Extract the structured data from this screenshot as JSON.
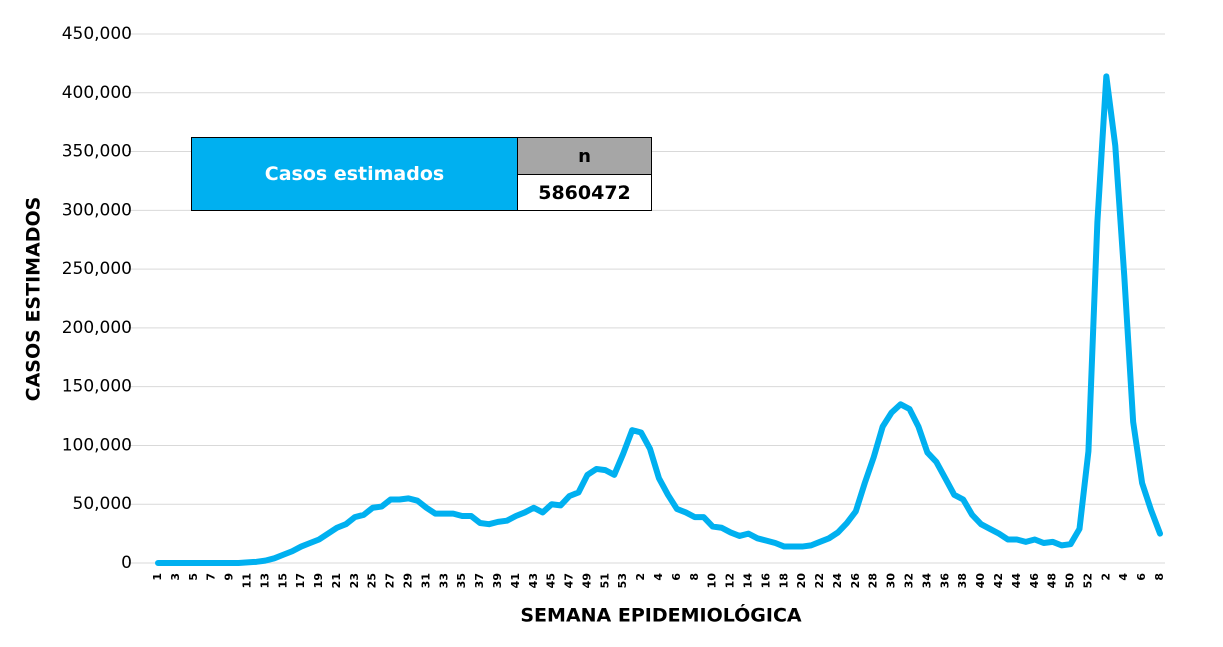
{
  "chart_data": {
    "type": "line",
    "x_label": "SEMANA EPIDEMIOLÓGICA",
    "y_label": "CASOS ESTIMADOS",
    "color": "#00b0f0",
    "grid": true,
    "categories": [
      "1",
      null,
      "3",
      null,
      "5",
      null,
      "7",
      null,
      "9",
      null,
      "11",
      null,
      "13",
      null,
      "15",
      null,
      "17",
      null,
      "19",
      null,
      "21",
      null,
      "23",
      null,
      "25",
      null,
      "27",
      null,
      "29",
      null,
      "31",
      null,
      "33",
      null,
      "35",
      null,
      "37",
      null,
      "39",
      null,
      "41",
      null,
      "43",
      null,
      "45",
      null,
      "47",
      null,
      "49",
      null,
      "51",
      null,
      "53",
      null,
      "2",
      null,
      "4",
      null,
      "6",
      null,
      "8",
      null,
      "10",
      null,
      "12",
      null,
      "14",
      null,
      "16",
      null,
      "18",
      null,
      "20",
      null,
      "22",
      null,
      "24",
      null,
      "26",
      null,
      "28",
      null,
      "30",
      null,
      "32",
      null,
      "34",
      null,
      "36",
      null,
      "38",
      null,
      "40",
      null,
      "42",
      null,
      "44",
      null,
      "46",
      null,
      "48",
      null,
      "50",
      null,
      "52",
      null,
      "2",
      null,
      "4",
      null,
      "6",
      null,
      "8"
    ],
    "values": [
      0,
      0,
      0,
      0,
      0,
      0,
      0,
      0,
      0,
      0,
      500,
      1000,
      2000,
      4000,
      7000,
      10000,
      14000,
      17000,
      20000,
      25000,
      30000,
      33000,
      39000,
      41000,
      47000,
      48000,
      54000,
      54000,
      55000,
      53000,
      47000,
      42000,
      42000,
      42000,
      40000,
      40000,
      34000,
      33000,
      35000,
      36000,
      40000,
      43000,
      47000,
      43000,
      50000,
      49000,
      57000,
      60000,
      75000,
      80000,
      79000,
      75000,
      93000,
      113000,
      111000,
      97000,
      72000,
      58000,
      46000,
      43000,
      39000,
      39000,
      31000,
      30000,
      26000,
      23000,
      25000,
      21000,
      19000,
      17000,
      14000,
      14000,
      14000,
      15000,
      18000,
      21000,
      26000,
      34000,
      44000,
      68000,
      90000,
      116000,
      128000,
      135000,
      131000,
      116000,
      94000,
      86000,
      72000,
      58000,
      54000,
      41000,
      33000,
      29000,
      25000,
      20000,
      20000,
      18000,
      20000,
      17000,
      18000,
      15000,
      16000,
      29000,
      95000,
      290000,
      414000,
      355000,
      245000,
      120000,
      68000,
      45000,
      25000
    ],
    "ylim": [
      0,
      450000
    ],
    "yticks": [
      0,
      {
        "value": 50000,
        "label": "50,000"
      },
      {
        "value": 100000,
        "label": "100,000"
      },
      {
        "value": 150000,
        "label": "150,000"
      },
      {
        "value": 200000,
        "label": "200,000"
      },
      {
        "value": 250000,
        "label": "250,000"
      },
      {
        "value": 300000,
        "label": "300,000"
      },
      {
        "value": 350000,
        "label": "350,000"
      },
      {
        "value": 400000,
        "label": "400,000"
      },
      {
        "value": 450000,
        "label": "450,000"
      }
    ],
    "table": {
      "label": "Casos estimados",
      "header": "n",
      "value": 5860472
    }
  }
}
